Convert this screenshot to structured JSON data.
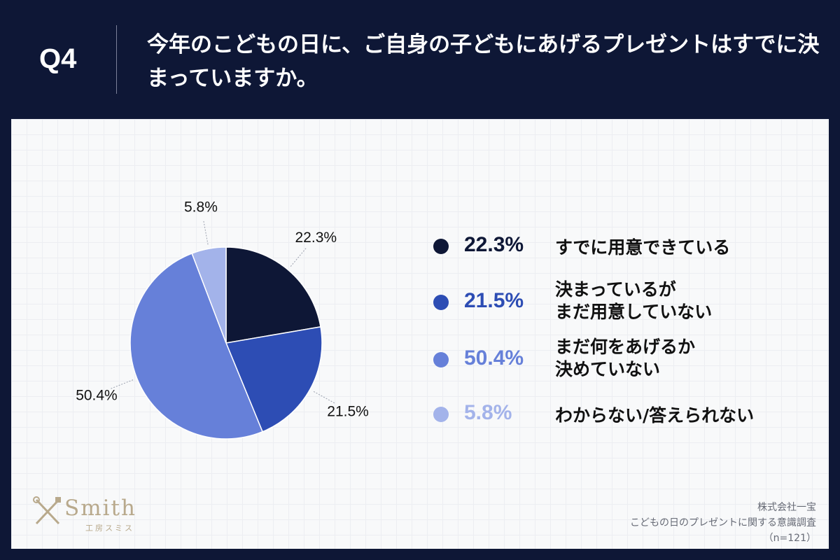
{
  "header": {
    "question_number": "Q4",
    "question_text": "今年のこどもの日に、ご自身の子どもにあげるプレゼントはすでに決まっていますか。"
  },
  "chart_data": {
    "type": "pie",
    "title": "",
    "start_angle_deg": 0,
    "direction": "clockwise",
    "slices": [
      {
        "label": "すでに用意できている",
        "value": 22.3,
        "display": "22.3%",
        "color": "#0e1736"
      },
      {
        "label": "決まっているが\nまだ用意していない",
        "value": 21.5,
        "display": "21.5%",
        "color": "#2d4db4"
      },
      {
        "label": "まだ何をあげるか\n決めていない",
        "value": 50.4,
        "display": "50.4%",
        "color": "#6680d9"
      },
      {
        "label": "わからない/答えられない",
        "value": 5.8,
        "display": "5.8%",
        "color": "#a3b3ea"
      }
    ],
    "legend_position": "right"
  },
  "footer": {
    "logo_name": "Smith",
    "logo_sub": "工房スミス",
    "company": "株式会社一宝",
    "survey": "こどもの日のプレゼントに関する意識調査",
    "sample": "（n=121）"
  }
}
